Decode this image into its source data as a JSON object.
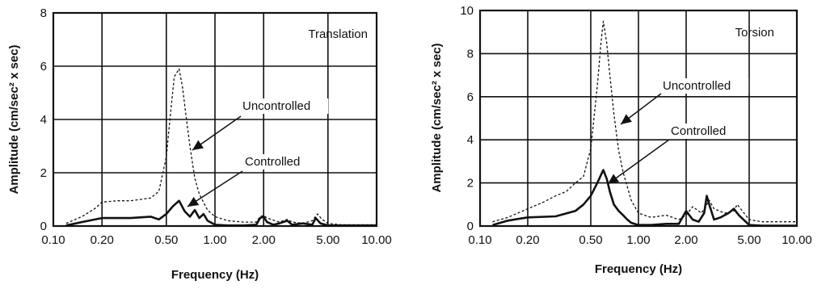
{
  "chart_data": [
    {
      "type": "line",
      "title": "Translation",
      "xlabel": "Frequency (Hz)",
      "ylabel": "Amplitude (cm/sec² x sec)",
      "x_scale": "log",
      "xlim": [
        0.1,
        10.0
      ],
      "ylim": [
        0,
        8
      ],
      "x_ticks": [
        "0.10",
        "0.20",
        "0.50",
        "1.00",
        "2.00",
        "5.00",
        "10.00"
      ],
      "y_ticks": [
        "0",
        "2",
        "4",
        "6",
        "8"
      ],
      "grid": true,
      "series": [
        {
          "name": "Uncontrolled",
          "style": "dashed",
          "x": [
            0.12,
            0.15,
            0.18,
            0.2,
            0.25,
            0.3,
            0.4,
            0.45,
            0.5,
            0.53,
            0.56,
            0.6,
            0.63,
            0.66,
            0.7,
            0.75,
            0.8,
            0.9,
            1.0,
            1.2,
            1.5,
            1.8,
            1.9,
            2.0,
            2.1,
            2.5,
            2.8,
            3.0,
            3.5,
            4.0,
            4.3,
            4.6,
            5.0,
            6.0,
            8.0,
            10.0
          ],
          "y": [
            0.1,
            0.35,
            0.65,
            0.9,
            0.95,
            0.95,
            1.05,
            1.3,
            2.6,
            4.2,
            5.6,
            5.9,
            5.2,
            4.2,
            3.0,
            1.8,
            1.2,
            0.6,
            0.35,
            0.2,
            0.15,
            0.15,
            0.35,
            0.4,
            0.3,
            0.15,
            0.25,
            0.15,
            0.1,
            0.2,
            0.45,
            0.25,
            0.1,
            0.05,
            0.05,
            0.05
          ]
        },
        {
          "name": "Controlled",
          "style": "solid",
          "x": [
            0.12,
            0.15,
            0.2,
            0.3,
            0.4,
            0.45,
            0.5,
            0.55,
            0.6,
            0.65,
            0.7,
            0.75,
            0.8,
            0.85,
            0.9,
            1.0,
            1.2,
            1.5,
            1.8,
            1.9,
            2.0,
            2.1,
            2.3,
            2.5,
            2.8,
            3.0,
            3.5,
            4.0,
            4.2,
            4.5,
            5.0,
            6.0,
            8.0,
            10.0
          ],
          "y": [
            0.02,
            0.15,
            0.3,
            0.3,
            0.35,
            0.25,
            0.45,
            0.75,
            0.95,
            0.55,
            0.35,
            0.6,
            0.3,
            0.45,
            0.2,
            0.05,
            0.02,
            0.02,
            0.05,
            0.3,
            0.35,
            0.15,
            0.05,
            0.1,
            0.2,
            0.05,
            0.1,
            0.05,
            0.3,
            0.1,
            0.02,
            0.02,
            0.02,
            0.02
          ]
        }
      ],
      "annotations": [
        {
          "text": "Uncontrolled",
          "x": 0.75,
          "y": 3.0
        },
        {
          "text": "Controlled",
          "x": 0.62,
          "y": 0.9
        }
      ]
    },
    {
      "type": "line",
      "title": "Torsion",
      "xlabel": "Frequency (Hz)",
      "ylabel": "Amplitude (cm/sec² x sec)",
      "x_scale": "log",
      "xlim": [
        0.1,
        10.0
      ],
      "ylim": [
        0,
        10
      ],
      "x_ticks": [
        "0.10",
        "0.20",
        "0.50",
        "1.00",
        "2.00",
        "5.00",
        "10.00"
      ],
      "y_ticks": [
        "0",
        "2",
        "4",
        "6",
        "8",
        "10"
      ],
      "grid": true,
      "series": [
        {
          "name": "Uncontrolled",
          "style": "dashed",
          "x": [
            0.12,
            0.15,
            0.2,
            0.25,
            0.3,
            0.35,
            0.4,
            0.45,
            0.5,
            0.55,
            0.58,
            0.6,
            0.63,
            0.66,
            0.7,
            0.75,
            0.8,
            0.9,
            1.0,
            1.2,
            1.5,
            1.8,
            2.0,
            2.2,
            2.5,
            2.7,
            2.8,
            3.0,
            3.5,
            4.0,
            4.2,
            5.0,
            6.0,
            8.0,
            10.0
          ],
          "y": [
            0.2,
            0.4,
            0.8,
            1.1,
            1.4,
            1.6,
            2.0,
            2.3,
            3.6,
            6.5,
            8.5,
            9.5,
            8.5,
            7.0,
            5.2,
            3.5,
            2.5,
            1.2,
            0.6,
            0.4,
            0.5,
            0.3,
            0.5,
            0.9,
            0.6,
            1.0,
            1.2,
            0.8,
            0.6,
            0.7,
            1.0,
            0.3,
            0.2,
            0.2,
            0.2
          ]
        },
        {
          "name": "Controlled",
          "style": "solid",
          "x": [
            0.12,
            0.15,
            0.2,
            0.3,
            0.4,
            0.45,
            0.5,
            0.55,
            0.6,
            0.63,
            0.66,
            0.7,
            0.75,
            0.8,
            0.85,
            0.9,
            1.0,
            1.2,
            1.5,
            1.8,
            2.0,
            2.2,
            2.4,
            2.6,
            2.7,
            2.8,
            3.0,
            3.3,
            3.7,
            4.0,
            4.3,
            5.0,
            6.0,
            8.0,
            10.0
          ],
          "y": [
            0.05,
            0.25,
            0.4,
            0.45,
            0.7,
            1.0,
            1.4,
            2.0,
            2.6,
            2.2,
            1.6,
            1.0,
            0.7,
            0.5,
            0.3,
            0.15,
            0.05,
            0.05,
            0.1,
            0.1,
            0.7,
            0.3,
            0.2,
            0.6,
            1.4,
            1.0,
            0.3,
            0.4,
            0.6,
            0.8,
            0.5,
            0.05,
            0.02,
            0.02,
            0.02
          ]
        }
      ],
      "annotations": [
        {
          "text": "Uncontrolled",
          "x": 0.78,
          "y": 4.8
        },
        {
          "text": "Controlled",
          "x": 0.62,
          "y": 2.4
        }
      ]
    }
  ]
}
